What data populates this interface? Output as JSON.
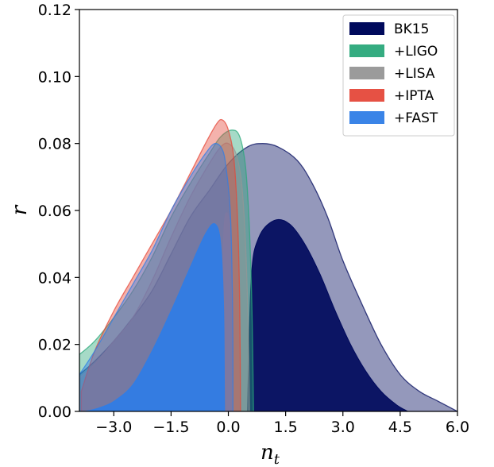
{
  "chart_data": {
    "type": "area",
    "title": "",
    "xlabel": "n",
    "xlabel_sub": "t",
    "ylabel": "r",
    "xlim": [
      -3.9,
      6.0
    ],
    "ylim": [
      0.0,
      0.12
    ],
    "xticks": [
      -3.0,
      -1.5,
      0.0,
      1.5,
      3.0,
      4.5,
      6.0
    ],
    "xtick_labels": [
      "−3.0",
      "−1.5",
      "0.0",
      "1.5",
      "3.0",
      "4.5",
      "6.0"
    ],
    "yticks": [
      0.0,
      0.02,
      0.04,
      0.06,
      0.08,
      0.1,
      0.12
    ],
    "ytick_labels": [
      "0.00",
      "0.02",
      "0.04",
      "0.06",
      "0.08",
      "0.10",
      "0.12"
    ],
    "grid": false,
    "legend_position": "top-right",
    "series": [
      {
        "name": "BK15",
        "color": "#000a5c",
        "outer": [
          [
            -3.9,
            0.011
          ],
          [
            -3.5,
            0.015
          ],
          [
            -3.0,
            0.021
          ],
          [
            -2.5,
            0.028
          ],
          [
            -2.0,
            0.036
          ],
          [
            -1.5,
            0.047
          ],
          [
            -1.0,
            0.058
          ],
          [
            -0.5,
            0.066
          ],
          [
            0.0,
            0.074
          ],
          [
            0.5,
            0.079
          ],
          [
            0.9,
            0.08
          ],
          [
            1.3,
            0.079
          ],
          [
            1.8,
            0.075
          ],
          [
            2.2,
            0.068
          ],
          [
            2.6,
            0.058
          ],
          [
            3.0,
            0.045
          ],
          [
            3.5,
            0.032
          ],
          [
            4.0,
            0.02
          ],
          [
            4.5,
            0.011
          ],
          [
            5.0,
            0.006
          ],
          [
            5.5,
            0.003
          ],
          [
            6.0,
            0.0
          ]
        ],
        "inner": [
          [
            0.5,
            0.0
          ],
          [
            0.6,
            0.04
          ],
          [
            0.8,
            0.052
          ],
          [
            1.2,
            0.057
          ],
          [
            1.6,
            0.056
          ],
          [
            2.0,
            0.05
          ],
          [
            2.4,
            0.041
          ],
          [
            2.8,
            0.03
          ],
          [
            3.2,
            0.02
          ],
          [
            3.6,
            0.012
          ],
          [
            4.0,
            0.006
          ],
          [
            4.4,
            0.002
          ],
          [
            4.7,
            0.0
          ]
        ]
      },
      {
        "name": "+LIGO",
        "color": "#2aa87a",
        "outer": [
          [
            -3.9,
            0.017
          ],
          [
            -3.5,
            0.021
          ],
          [
            -3.0,
            0.028
          ],
          [
            -2.5,
            0.036
          ],
          [
            -2.0,
            0.046
          ],
          [
            -1.5,
            0.058
          ],
          [
            -1.0,
            0.068
          ],
          [
            -0.5,
            0.077
          ],
          [
            -0.2,
            0.082
          ],
          [
            0.1,
            0.084
          ],
          [
            0.3,
            0.082
          ],
          [
            0.45,
            0.073
          ],
          [
            0.55,
            0.055
          ],
          [
            0.62,
            0.03
          ],
          [
            0.66,
            0.0
          ]
        ],
        "inner": []
      },
      {
        "name": "+LISA",
        "color": "#969696",
        "outer": [
          [
            -3.9,
            0.01
          ],
          [
            -3.5,
            0.014
          ],
          [
            -3.0,
            0.021
          ],
          [
            -2.5,
            0.028
          ],
          [
            -2.0,
            0.039
          ],
          [
            -1.5,
            0.052
          ],
          [
            -1.0,
            0.064
          ],
          [
            -0.5,
            0.074
          ],
          [
            -0.2,
            0.079
          ],
          [
            0.0,
            0.08
          ],
          [
            0.2,
            0.077
          ],
          [
            0.35,
            0.068
          ],
          [
            0.45,
            0.05
          ],
          [
            0.52,
            0.025
          ],
          [
            0.55,
            0.0
          ]
        ],
        "inner": [
          [
            -0.05,
            0.0
          ],
          [
            -0.15,
            0.03
          ],
          [
            -0.1,
            0.057
          ],
          [
            0.05,
            0.055
          ],
          [
            0.12,
            0.03
          ],
          [
            0.1,
            0.0
          ]
        ]
      },
      {
        "name": "+IPTA",
        "color": "#e5483a",
        "outer": [
          [
            -3.85,
            0.006
          ],
          [
            -3.5,
            0.018
          ],
          [
            -3.0,
            0.03
          ],
          [
            -2.5,
            0.04
          ],
          [
            -2.0,
            0.05
          ],
          [
            -1.5,
            0.06
          ],
          [
            -1.0,
            0.071
          ],
          [
            -0.6,
            0.08
          ],
          [
            -0.3,
            0.086
          ],
          [
            -0.15,
            0.087
          ],
          [
            0.0,
            0.084
          ],
          [
            0.15,
            0.075
          ],
          [
            0.25,
            0.055
          ],
          [
            0.3,
            0.03
          ],
          [
            0.32,
            0.0
          ]
        ],
        "inner": []
      },
      {
        "name": "+FAST",
        "color": "#2f7de6",
        "outer": [
          [
            -3.9,
            0.011
          ],
          [
            -3.5,
            0.018
          ],
          [
            -3.0,
            0.028
          ],
          [
            -2.5,
            0.038
          ],
          [
            -2.0,
            0.048
          ],
          [
            -1.5,
            0.06
          ],
          [
            -1.0,
            0.07
          ],
          [
            -0.6,
            0.077
          ],
          [
            -0.35,
            0.08
          ],
          [
            -0.15,
            0.078
          ],
          [
            -0.05,
            0.072
          ],
          [
            0.05,
            0.06
          ],
          [
            0.1,
            0.04
          ],
          [
            0.12,
            0.02
          ],
          [
            0.12,
            0.0
          ]
        ],
        "inner": [
          [
            -3.75,
            0.0
          ],
          [
            -3.4,
            0.001
          ],
          [
            -3.0,
            0.003
          ],
          [
            -2.5,
            0.008
          ],
          [
            -2.0,
            0.018
          ],
          [
            -1.5,
            0.03
          ],
          [
            -1.0,
            0.043
          ],
          [
            -0.6,
            0.053
          ],
          [
            -0.35,
            0.056
          ],
          [
            -0.2,
            0.05
          ],
          [
            -0.12,
            0.03
          ],
          [
            -0.1,
            0.0
          ]
        ]
      }
    ]
  }
}
